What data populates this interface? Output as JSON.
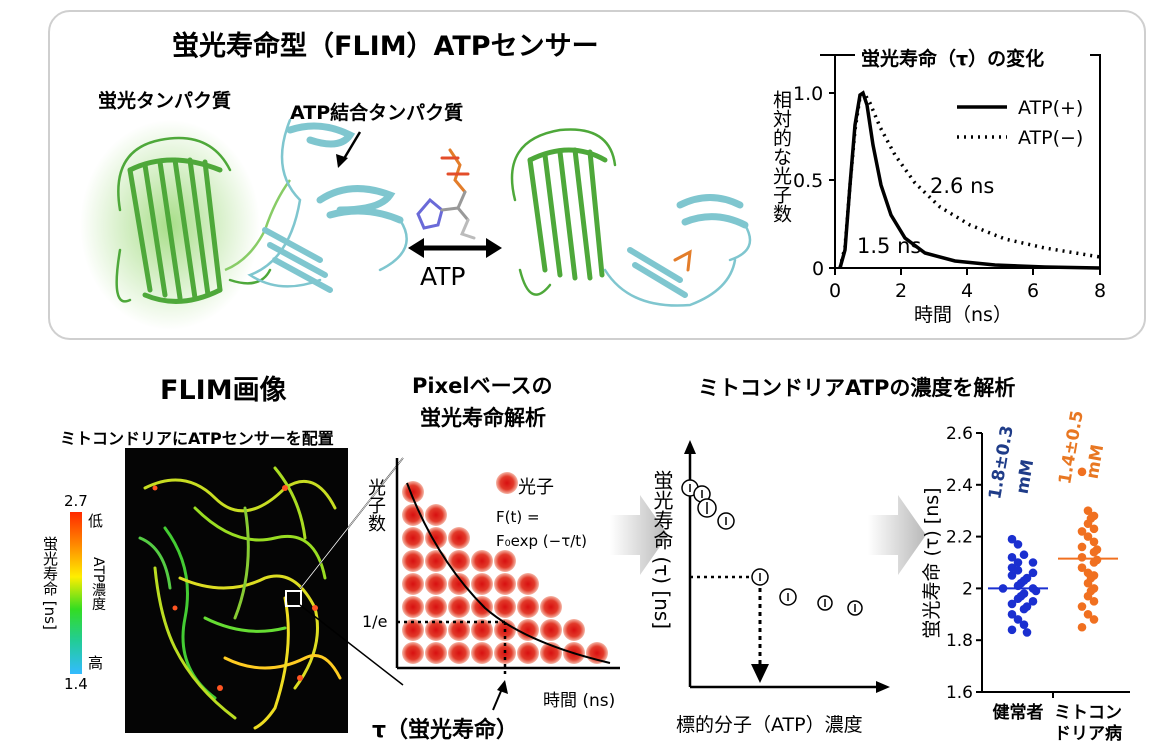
{
  "top_panel": {
    "title": "蛍光寿命型（FLIM）ATPセンサー",
    "label_fluor_protein": "蛍光タンパク質",
    "label_atp_binding": "ATP結合タンパク質",
    "label_atp": "ATP"
  },
  "decay_chart": {
    "title": "蛍光寿命（τ）の変化",
    "ylabel": "相対的な光子数",
    "xlabel": "時間（ns）",
    "annotation_plus": "1.5 ns",
    "annotation_minus": "2.6 ns"
  },
  "flim_section": {
    "title": "FLIM画像",
    "subtitle": "ミトコンドリアにATPセンサーを配置",
    "colorbar_title": "蛍光寿命 [ns]",
    "colorbar_max": "2.7",
    "colorbar_min": "1.4",
    "colorbar_low": "低",
    "colorbar_mid": "ATP濃度",
    "colorbar_high": "高",
    "colors": {
      "max": "#ff2a00",
      "mid": "#33dd22",
      "min": "#33bbff"
    }
  },
  "pixel_section": {
    "title_line1": "Pixelベースの",
    "title_line2": "蛍光寿命解析",
    "legend_photon": "光子",
    "formula_line1": "F(t) =",
    "formula_line2": "F₀exp (−τ/t)",
    "ylabel": "光子数",
    "xlabel": "時間 (ns)",
    "one_over_e": "1/e",
    "tau_label": "τ（蛍光寿命）"
  },
  "calib_section": {
    "title": "ミトコンドリアATPの濃度を解析",
    "ylabel": "蛍光寿命 (τ) [ns]",
    "xlabel": "標的分子（ATP）濃度"
  },
  "chart_data": {
    "type": "scatter",
    "title": "",
    "ylabel": "蛍光寿命 (τ) [ns]",
    "ylim": [
      1.6,
      2.6
    ],
    "yticks": [
      "1.6",
      "1.8",
      "2",
      "2.2",
      "2.4",
      "2.6"
    ],
    "categories": [
      "健常者",
      "ミトコンドリア病"
    ],
    "category_labels": [
      [
        "健常者"
      ],
      [
        "ミトコン",
        "ドリア病"
      ]
    ],
    "annotations": [
      {
        "category": "健常者",
        "line1": "1.8±0.3",
        "line2": "mM",
        "color": "#1f3c88"
      },
      {
        "category": "ミトコンドリア病",
        "line1": "1.4±0.5",
        "line2": "mM",
        "color": "#e87722"
      }
    ],
    "series": [
      {
        "category": "健常者",
        "color": "#1a2fd0",
        "mean": 2.0,
        "values": [
          2.19,
          2.17,
          2.13,
          2.12,
          2.1,
          2.1,
          2.08,
          2.07,
          2.06,
          2.05,
          2.04,
          2.03,
          2.02,
          2.01,
          2.0,
          2.0,
          1.99,
          1.98,
          1.97,
          1.96,
          1.95,
          1.94,
          1.93,
          1.92,
          1.9,
          1.88,
          1.86,
          1.84,
          1.83
        ]
      },
      {
        "category": "ミトコンドリア病",
        "color": "#f07020",
        "mean": 2.115,
        "values": [
          2.45,
          2.3,
          2.28,
          2.27,
          2.25,
          2.23,
          2.22,
          2.2,
          2.18,
          2.16,
          2.15,
          2.14,
          2.12,
          2.11,
          2.1,
          2.08,
          2.06,
          2.05,
          2.04,
          2.02,
          2.0,
          1.99,
          1.97,
          1.95,
          1.93,
          1.9,
          1.88,
          1.85
        ]
      }
    ]
  }
}
